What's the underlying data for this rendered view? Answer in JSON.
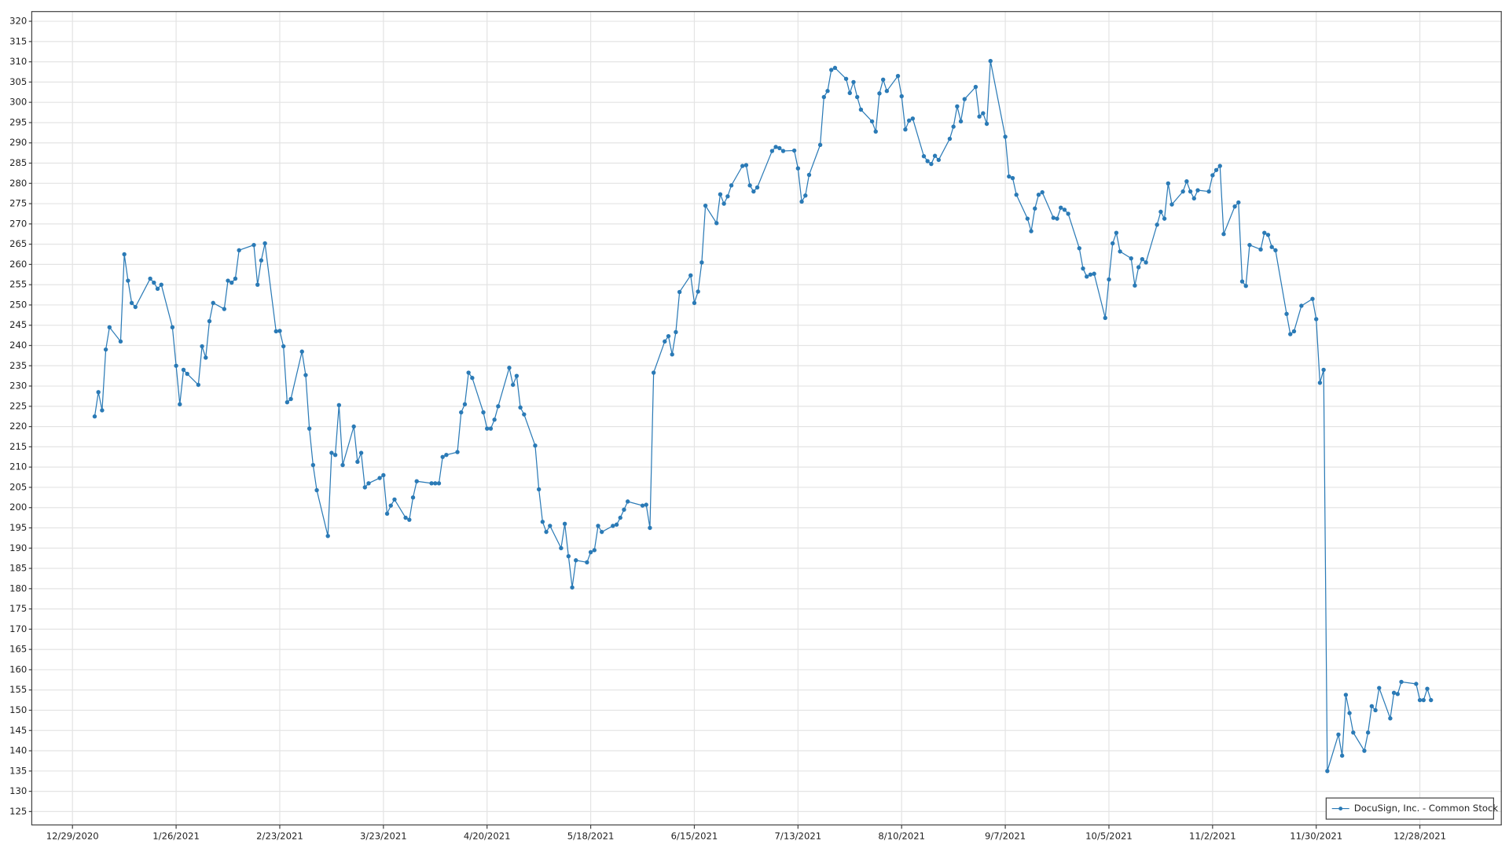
{
  "chart_data": {
    "type": "line",
    "x": [
      "1/4/2021",
      "1/5/2021",
      "1/6/2021",
      "1/7/2021",
      "1/8/2021",
      "1/11/2021",
      "1/12/2021",
      "1/13/2021",
      "1/14/2021",
      "1/15/2021",
      "1/19/2021",
      "1/20/2021",
      "1/21/2021",
      "1/22/2021",
      "1/25/2021",
      "1/26/2021",
      "1/27/2021",
      "1/28/2021",
      "1/29/2021",
      "2/1/2021",
      "2/2/2021",
      "2/3/2021",
      "2/4/2021",
      "2/5/2021",
      "2/8/2021",
      "2/9/2021",
      "2/10/2021",
      "2/11/2021",
      "2/12/2021",
      "2/16/2021",
      "2/17/2021",
      "2/18/2021",
      "2/19/2021",
      "2/22/2021",
      "2/23/2021",
      "2/24/2021",
      "2/25/2021",
      "2/26/2021",
      "3/1/2021",
      "3/2/2021",
      "3/3/2021",
      "3/4/2021",
      "3/5/2021",
      "3/8/2021",
      "3/9/2021",
      "3/10/2021",
      "3/11/2021",
      "3/12/2021",
      "3/15/2021",
      "3/16/2021",
      "3/17/2021",
      "3/18/2021",
      "3/19/2021",
      "3/22/2021",
      "3/23/2021",
      "3/24/2021",
      "3/25/2021",
      "3/26/2021",
      "3/29/2021",
      "3/30/2021",
      "3/31/2021",
      "4/1/2021",
      "4/5/2021",
      "4/6/2021",
      "4/7/2021",
      "4/8/2021",
      "4/9/2021",
      "4/12/2021",
      "4/13/2021",
      "4/14/2021",
      "4/15/2021",
      "4/16/2021",
      "4/19/2021",
      "4/20/2021",
      "4/21/2021",
      "4/22/2021",
      "4/23/2021",
      "4/26/2021",
      "4/27/2021",
      "4/28/2021",
      "4/29/2021",
      "4/30/2021",
      "5/3/2021",
      "5/4/2021",
      "5/5/2021",
      "5/6/2021",
      "5/7/2021",
      "5/10/2021",
      "5/11/2021",
      "5/12/2021",
      "5/13/2021",
      "5/14/2021",
      "5/17/2021",
      "5/18/2021",
      "5/19/2021",
      "5/20/2021",
      "5/21/2021",
      "5/24/2021",
      "5/25/2021",
      "5/26/2021",
      "5/27/2021",
      "5/28/2021",
      "6/1/2021",
      "6/2/2021",
      "6/3/2021",
      "6/4/2021",
      "6/7/2021",
      "6/8/2021",
      "6/9/2021",
      "6/10/2021",
      "6/11/2021",
      "6/14/2021",
      "6/15/2021",
      "6/16/2021",
      "6/17/2021",
      "6/18/2021",
      "6/21/2021",
      "6/22/2021",
      "6/23/2021",
      "6/24/2021",
      "6/25/2021",
      "6/28/2021",
      "6/29/2021",
      "6/30/2021",
      "7/1/2021",
      "7/2/2021",
      "7/6/2021",
      "7/7/2021",
      "7/8/2021",
      "7/9/2021",
      "7/12/2021",
      "7/13/2021",
      "7/14/2021",
      "7/15/2021",
      "7/16/2021",
      "7/19/2021",
      "7/20/2021",
      "7/21/2021",
      "7/22/2021",
      "7/23/2021",
      "7/26/2021",
      "7/27/2021",
      "7/28/2021",
      "7/29/2021",
      "7/30/2021",
      "8/2/2021",
      "8/3/2021",
      "8/4/2021",
      "8/5/2021",
      "8/6/2021",
      "8/9/2021",
      "8/10/2021",
      "8/11/2021",
      "8/12/2021",
      "8/13/2021",
      "8/16/2021",
      "8/17/2021",
      "8/18/2021",
      "8/19/2021",
      "8/20/2021",
      "8/23/2021",
      "8/24/2021",
      "8/25/2021",
      "8/26/2021",
      "8/27/2021",
      "8/30/2021",
      "8/31/2021",
      "9/1/2021",
      "9/2/2021",
      "9/3/2021",
      "9/7/2021",
      "9/8/2021",
      "9/9/2021",
      "9/10/2021",
      "9/13/2021",
      "9/14/2021",
      "9/15/2021",
      "9/16/2021",
      "9/17/2021",
      "9/20/2021",
      "9/21/2021",
      "9/22/2021",
      "9/23/2021",
      "9/24/2021",
      "9/27/2021",
      "9/28/2021",
      "9/29/2021",
      "9/30/2021",
      "10/1/2021",
      "10/4/2021",
      "10/5/2021",
      "10/6/2021",
      "10/7/2021",
      "10/8/2021",
      "10/11/2021",
      "10/12/2021",
      "10/13/2021",
      "10/14/2021",
      "10/15/2021",
      "10/18/2021",
      "10/19/2021",
      "10/20/2021",
      "10/21/2021",
      "10/22/2021",
      "10/25/2021",
      "10/26/2021",
      "10/27/2021",
      "10/28/2021",
      "10/29/2021",
      "11/1/2021",
      "11/2/2021",
      "11/3/2021",
      "11/4/2021",
      "11/5/2021",
      "11/8/2021",
      "11/9/2021",
      "11/10/2021",
      "11/11/2021",
      "11/12/2021",
      "11/15/2021",
      "11/16/2021",
      "11/17/2021",
      "11/18/2021",
      "11/19/2021",
      "11/22/2021",
      "11/23/2021",
      "11/24/2021",
      "11/26/2021",
      "11/29/2021",
      "11/30/2021",
      "12/1/2021",
      "12/2/2021",
      "12/3/2021",
      "12/6/2021",
      "12/7/2021",
      "12/8/2021",
      "12/9/2021",
      "12/10/2021",
      "12/13/2021",
      "12/14/2021",
      "12/15/2021",
      "12/16/2021",
      "12/17/2021",
      "12/20/2021",
      "12/21/2021",
      "12/22/2021",
      "12/23/2021",
      "12/27/2021",
      "12/28/2021",
      "12/29/2021",
      "12/30/2021",
      "12/31/2021"
    ],
    "series": [
      {
        "name": "DocuSign, Inc. - Common Stock",
        "color": "#2a7ab6",
        "values": [
          222.5,
          228.5,
          224,
          239,
          244.5,
          241,
          262.5,
          256,
          250.5,
          249.5,
          256.5,
          255.5,
          254,
          255,
          244.5,
          235,
          225.5,
          234,
          233,
          230.3,
          239.8,
          237,
          246,
          250.5,
          249,
          256,
          255.5,
          256.5,
          263.5,
          264.8,
          255,
          261,
          265.2,
          243.5,
          243.6,
          239.8,
          226,
          226.8,
          238.5,
          232.7,
          219.5,
          210.5,
          204.3,
          193,
          213.5,
          213,
          225.3,
          210.5,
          220,
          211.3,
          213.5,
          205,
          206,
          207.3,
          208,
          198.5,
          200.5,
          202,
          197.5,
          197,
          202.5,
          206.5,
          206,
          206,
          206,
          212.5,
          213,
          213.7,
          223.5,
          225.5,
          233.3,
          232,
          223.5,
          219.5,
          219.5,
          221.7,
          225,
          234.5,
          230.3,
          232.5,
          224.7,
          223,
          215.3,
          204.5,
          196.5,
          194,
          195.5,
          190,
          196,
          188,
          180.3,
          187,
          186.5,
          189,
          189.5,
          195.5,
          194,
          195.5,
          195.8,
          197.5,
          199.5,
          201.5,
          200.5,
          200.7,
          195,
          233.3,
          241,
          242.3,
          237.8,
          243.3,
          253.2,
          257.3,
          250.5,
          253.3,
          260.5,
          274.5,
          270.2,
          277.3,
          275,
          276.8,
          279.5,
          284.3,
          284.5,
          279.5,
          278,
          279,
          288,
          289,
          288.7,
          288,
          288.1,
          283.7,
          275.5,
          277,
          282.1,
          289.5,
          301.3,
          302.8,
          308,
          308.5,
          305.8,
          302.3,
          305,
          301.3,
          298.2,
          295.3,
          292.8,
          302.2,
          305.6,
          302.8,
          306.5,
          301.5,
          293.3,
          295.5,
          296,
          286.7,
          285.5,
          284.8,
          286.8,
          285.8,
          291,
          294,
          299,
          295.3,
          300.8,
          303.8,
          296.5,
          297.3,
          294.7,
          310.2,
          291.5,
          281.7,
          281.3,
          277.2,
          271.3,
          268.2,
          273.8,
          277.2,
          277.8,
          271.5,
          271.3,
          274,
          273.5,
          272.5,
          264,
          259,
          257,
          257.5,
          257.7,
          246.8,
          256.3,
          265.2,
          267.8,
          263.2,
          261.5,
          254.8,
          259.3,
          261.3,
          260.5,
          269.8,
          273,
          271.3,
          280,
          274.8,
          278,
          280.5,
          278,
          276.3,
          278.3,
          278,
          282,
          283.3,
          284.3,
          267.5,
          274.3,
          275.3,
          255.8,
          254.7,
          264.8,
          263.7,
          267.8,
          267.3,
          264.3,
          263.5,
          247.8,
          242.8,
          243.5,
          249.8,
          251.5,
          246.5,
          230.8,
          234,
          135,
          144,
          138.8,
          153.8,
          149.3,
          144.5,
          140,
          144.5,
          151,
          150,
          155.5,
          148,
          154.3,
          154,
          157,
          156.5,
          152.5,
          152.5,
          155.3,
          152.5
        ]
      }
    ],
    "xlim": [
      "12/18/2020",
      "1/19/2022"
    ],
    "xticks": [
      "12/29/2020",
      "1/26/2021",
      "2/23/2021",
      "3/23/2021",
      "4/20/2021",
      "5/18/2021",
      "6/15/2021",
      "7/13/2021",
      "8/10/2021",
      "9/7/2021",
      "10/5/2021",
      "11/2/2021",
      "11/30/2021",
      "12/28/2021"
    ],
    "ylim": [
      121.7,
      322.4
    ],
    "yticks": [
      125,
      130,
      135,
      140,
      145,
      150,
      155,
      160,
      165,
      170,
      175,
      180,
      185,
      190,
      195,
      200,
      205,
      210,
      215,
      220,
      225,
      230,
      235,
      240,
      245,
      250,
      255,
      260,
      265,
      270,
      275,
      280,
      285,
      290,
      295,
      300,
      305,
      310,
      315,
      320
    ],
    "grid": true,
    "legend": "lower right"
  }
}
